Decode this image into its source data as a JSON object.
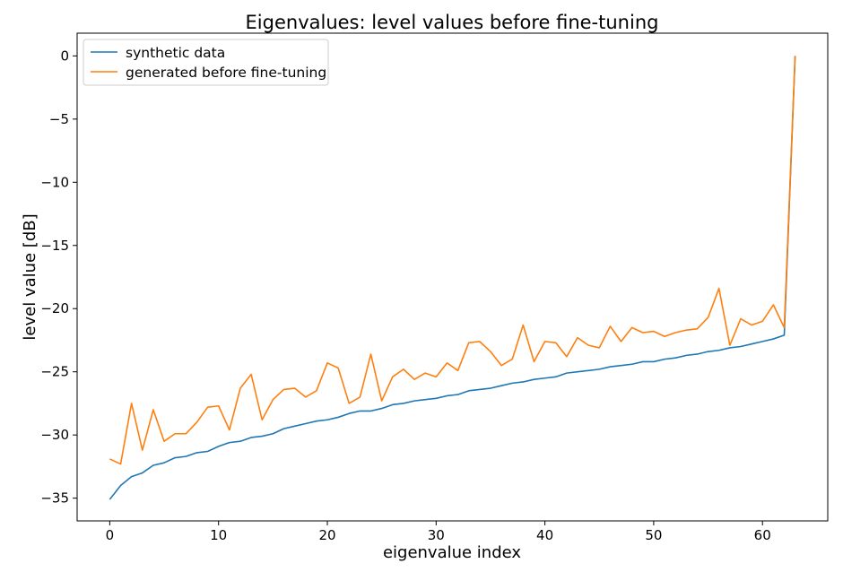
{
  "chart_data": {
    "type": "line",
    "title": "Eigenvalues: level values before fine-tuning",
    "xlabel": "eigenvalue index",
    "ylabel": "level value [dB]",
    "xlim": [
      -3,
      66
    ],
    "ylim": [
      -36.8,
      1.8
    ],
    "xticks": [
      0,
      10,
      20,
      30,
      40,
      50,
      60
    ],
    "yticks": [
      0,
      -5,
      -10,
      -15,
      -20,
      -25,
      -30,
      -35
    ],
    "ytick_labels": [
      "0",
      "−5",
      "−10",
      "−15",
      "−20",
      "−25",
      "−30",
      "−35"
    ],
    "grid": false,
    "legend_position": "upper-left",
    "x": [
      0,
      1,
      2,
      3,
      4,
      5,
      6,
      7,
      8,
      9,
      10,
      11,
      12,
      13,
      14,
      15,
      16,
      17,
      18,
      19,
      20,
      21,
      22,
      23,
      24,
      25,
      26,
      27,
      28,
      29,
      30,
      31,
      32,
      33,
      34,
      35,
      36,
      37,
      38,
      39,
      40,
      41,
      42,
      43,
      44,
      45,
      46,
      47,
      48,
      49,
      50,
      51,
      52,
      53,
      54,
      55,
      56,
      57,
      58,
      59,
      60,
      61,
      62,
      63
    ],
    "series": [
      {
        "name": "synthetic data",
        "color": "#1f77b4",
        "values": [
          -35.1,
          -34.0,
          -33.3,
          -33.0,
          -32.4,
          -32.2,
          -31.8,
          -31.7,
          -31.4,
          -31.3,
          -30.9,
          -30.6,
          -30.5,
          -30.2,
          -30.1,
          -29.9,
          -29.5,
          -29.3,
          -29.1,
          -28.9,
          -28.8,
          -28.6,
          -28.3,
          -28.1,
          -28.1,
          -27.9,
          -27.6,
          -27.5,
          -27.3,
          -27.2,
          -27.1,
          -26.9,
          -26.8,
          -26.5,
          -26.4,
          -26.3,
          -26.1,
          -25.9,
          -25.8,
          -25.6,
          -25.5,
          -25.4,
          -25.1,
          -25.0,
          -24.9,
          -24.8,
          -24.6,
          -24.5,
          -24.4,
          -24.2,
          -24.2,
          -24.0,
          -23.9,
          -23.7,
          -23.6,
          -23.4,
          -23.3,
          -23.1,
          -23.0,
          -22.8,
          -22.6,
          -22.4,
          -22.1,
          0.0
        ]
      },
      {
        "name": "generated before fine-tuning",
        "color": "#ff7f0e",
        "values": [
          -31.9,
          -32.3,
          -27.5,
          -31.2,
          -28.0,
          -30.5,
          -29.9,
          -29.9,
          -29.0,
          -27.8,
          -27.7,
          -29.6,
          -26.3,
          -25.2,
          -28.8,
          -27.2,
          -26.4,
          -26.3,
          -27.0,
          -26.5,
          -24.3,
          -24.7,
          -27.5,
          -27.0,
          -23.6,
          -27.3,
          -25.4,
          -24.8,
          -25.6,
          -25.1,
          -25.4,
          -24.3,
          -24.9,
          -22.7,
          -22.6,
          -23.4,
          -24.5,
          -24.0,
          -21.3,
          -24.2,
          -22.6,
          -22.7,
          -23.8,
          -22.3,
          -22.9,
          -23.1,
          -21.4,
          -22.6,
          -21.5,
          -21.9,
          -21.8,
          -22.2,
          -21.9,
          -21.7,
          -21.6,
          -20.7,
          -18.4,
          -22.9,
          -20.8,
          -21.3,
          -21.0,
          -19.7,
          -21.5,
          0.0
        ]
      }
    ]
  }
}
